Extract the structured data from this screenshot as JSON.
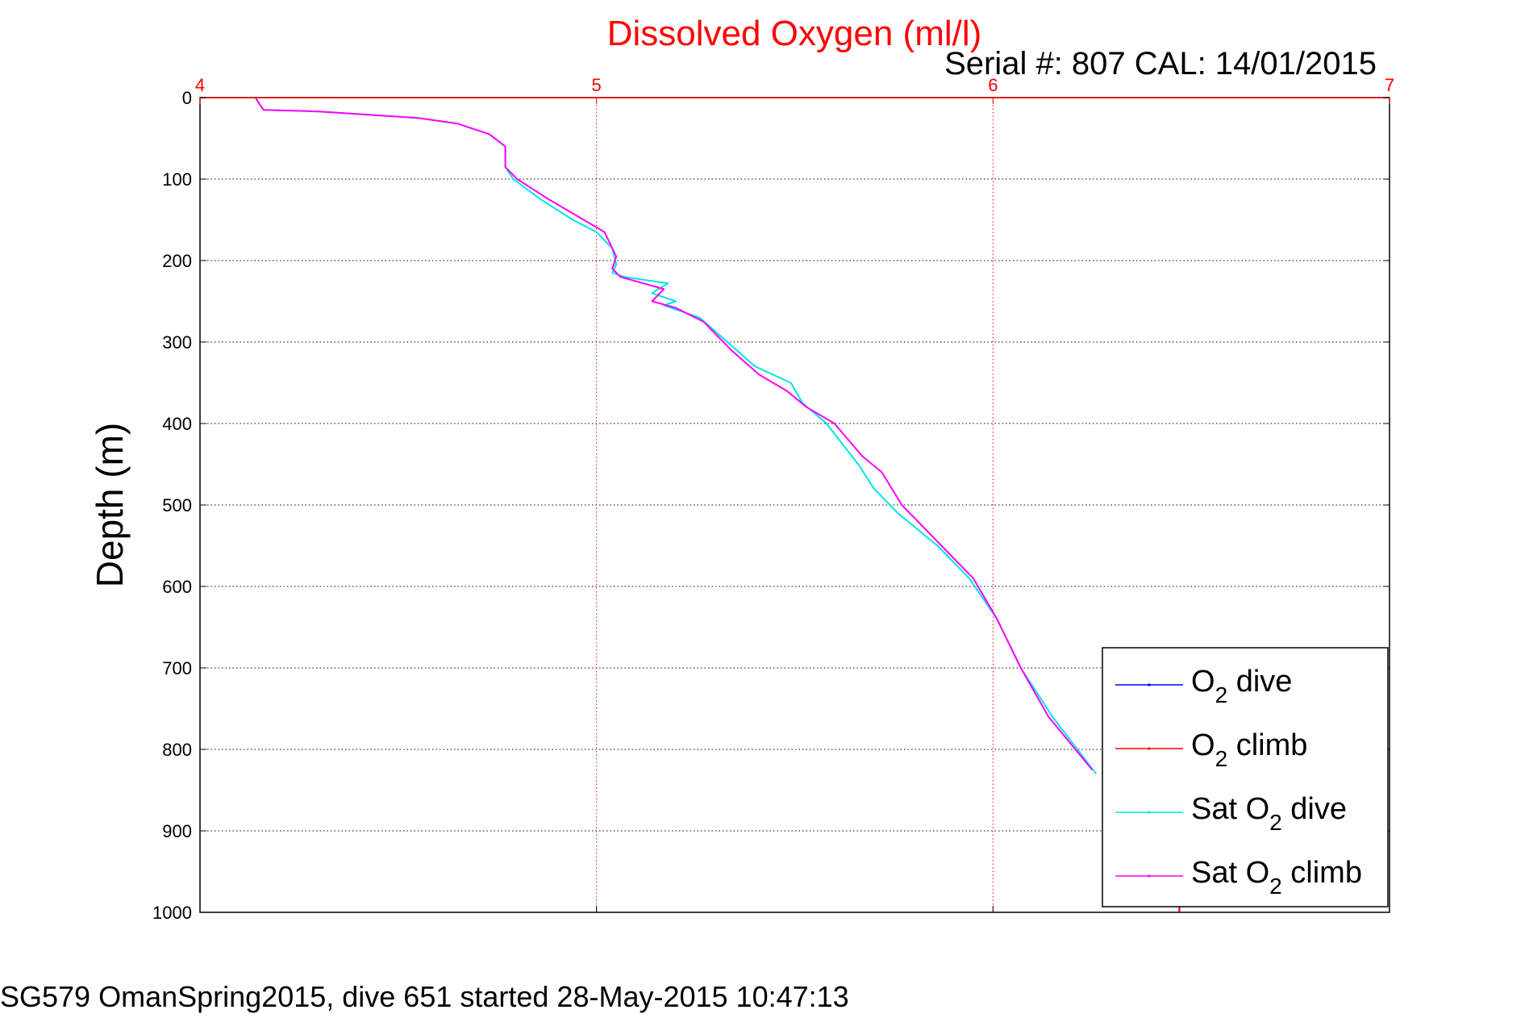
{
  "chart_data": {
    "type": "line",
    "title": "Dissolved Oxygen (ml/l)",
    "subtitle": "Serial #: 807  CAL: 14/01/2015",
    "xlabel": "",
    "ylabel": "Depth (m)",
    "footer": "SG579 OmanSpring2015, dive 651 started 28-May-2015 10:47:13",
    "xlim": [
      4,
      7
    ],
    "ylim": [
      0,
      1000
    ],
    "y_reversed": true,
    "x_axis_position": "top",
    "xticks": [
      "4",
      "5",
      "6",
      "7"
    ],
    "yticks": [
      "0",
      "100",
      "200",
      "300",
      "400",
      "500",
      "600",
      "700",
      "800",
      "900",
      "1000"
    ],
    "grid": true,
    "legend_position": "bottom-right",
    "colors": {
      "title": "#ff0000",
      "xtick": "#ff0000",
      "xgrid": "#ff0000",
      "ygrid": "#000000"
    },
    "series": [
      {
        "name": "O2 dive",
        "legend_base": "O",
        "legend_sub": "2",
        "legend_rest": " dive",
        "color": "#0000ff",
        "x": [
          6.47,
          6.47
        ],
        "y": [
          990,
          1000
        ]
      },
      {
        "name": "O2 climb",
        "legend_base": "O",
        "legend_sub": "2",
        "legend_rest": " climb",
        "color": "#ff0000",
        "x": [
          6.47,
          6.47
        ],
        "y": [
          990,
          1000
        ]
      },
      {
        "name": "Sat O2 dive",
        "legend_base": "Sat O",
        "legend_sub": "2",
        "legend_rest": " dive",
        "color": "#00e5e5",
        "x": [
          4.14,
          4.15,
          4.16,
          4.3,
          4.55,
          4.65,
          4.73,
          4.77,
          4.77,
          4.79,
          4.86,
          4.94,
          5.0,
          5.04,
          5.05,
          5.04,
          5.07,
          5.18,
          5.14,
          5.2,
          5.17,
          5.26,
          5.33,
          5.4,
          5.49,
          5.52,
          5.58,
          5.66,
          5.7,
          5.76,
          5.86,
          5.94,
          6.01,
          6.07,
          6.15,
          6.26
        ],
        "y": [
          0,
          8,
          15,
          17,
          25,
          32,
          45,
          60,
          85,
          100,
          125,
          150,
          165,
          185,
          205,
          215,
          220,
          228,
          240,
          250,
          255,
          270,
          300,
          330,
          350,
          375,
          400,
          450,
          480,
          510,
          550,
          590,
          640,
          700,
          760,
          830
        ]
      },
      {
        "name": "Sat O2 climb",
        "legend_base": "Sat O",
        "legend_sub": "2",
        "legend_rest": " climb",
        "color": "#ff00ff",
        "x": [
          4.14,
          4.15,
          4.16,
          4.3,
          4.55,
          4.65,
          4.73,
          4.77,
          4.77,
          4.8,
          4.88,
          4.95,
          5.02,
          5.05,
          5.04,
          5.06,
          5.17,
          5.14,
          5.2,
          5.27,
          5.34,
          5.41,
          5.48,
          5.53,
          5.6,
          5.67,
          5.72,
          5.77,
          5.87,
          5.95,
          6.01,
          6.07,
          6.14,
          6.25
        ],
        "y": [
          0,
          8,
          15,
          17,
          25,
          32,
          45,
          60,
          85,
          100,
          125,
          145,
          165,
          195,
          210,
          220,
          235,
          250,
          258,
          275,
          310,
          340,
          360,
          380,
          400,
          440,
          460,
          500,
          550,
          590,
          640,
          700,
          760,
          825
        ]
      }
    ]
  }
}
